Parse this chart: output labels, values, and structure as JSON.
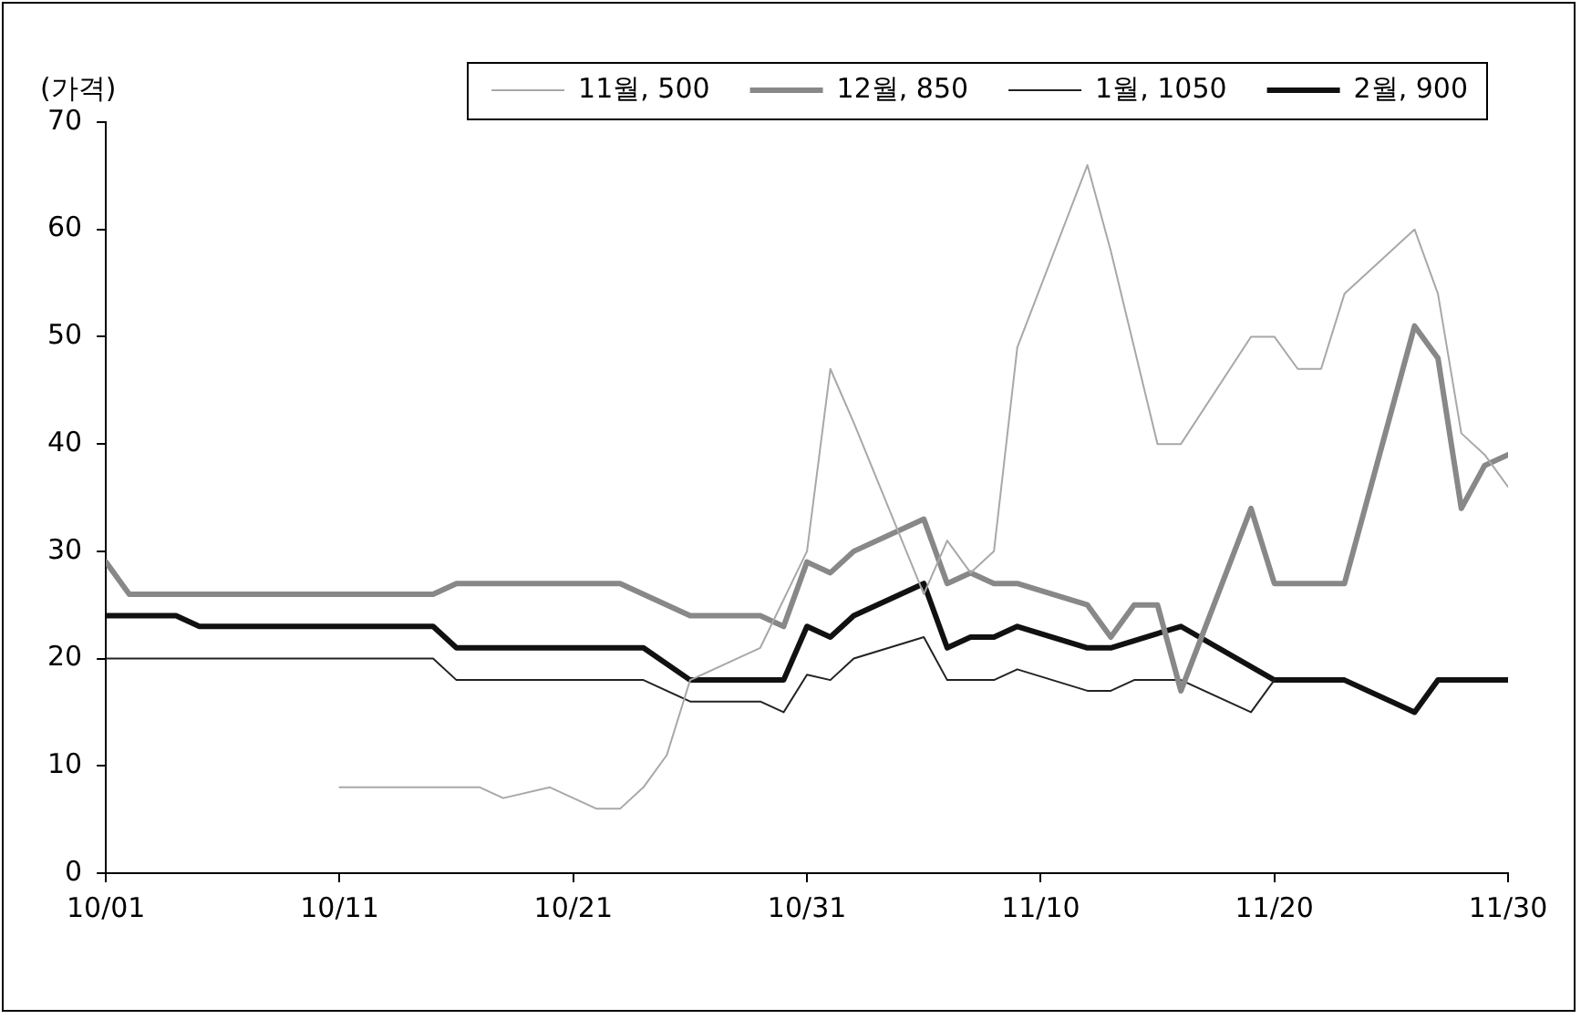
{
  "chart_data": {
    "type": "line",
    "ylabel": "(가격)",
    "xlim": [
      "--10-01",
      "--11-30"
    ],
    "xticks": [
      {
        "value": "--10-01",
        "label": "10/01"
      },
      {
        "value": "--10-11",
        "label": "10/11"
      },
      {
        "value": "--10-21",
        "label": "10/21"
      },
      {
        "value": "--10-31",
        "label": "10/31"
      },
      {
        "value": "--11-10",
        "label": "11/10"
      },
      {
        "value": "--11-20",
        "label": "11/20"
      },
      {
        "value": "--11-30",
        "label": "11/30"
      }
    ],
    "ylim": [
      0,
      70
    ],
    "yticks": [
      0,
      10,
      20,
      30,
      40,
      50,
      60,
      70
    ],
    "grid": false,
    "legend": "top right",
    "marker": "none",
    "series": [
      {
        "name": "11월, 500",
        "color": "#a8a8a8",
        "x": [
          "--10-11",
          "--10-17",
          "--10-18",
          "--10-20",
          "--10-22",
          "--10-23",
          "--10-24",
          "--10-25",
          "--10-26",
          "--10-29",
          "--10-31",
          "--11-01",
          "--11-02",
          "--11-05",
          "--11-06",
          "--11-07",
          "--11-08",
          "--11-09",
          "--11-12",
          "--11-13",
          "--11-15",
          "--11-16",
          "--11-19",
          "--11-20",
          "--11-21",
          "--11-22",
          "--11-23",
          "--11-24",
          "--11-26",
          "--11-27",
          "--11-28",
          "--11-29",
          "--11-30"
        ],
        "values": [
          8,
          8,
          7,
          8,
          6,
          6,
          8,
          11,
          18,
          21,
          30,
          47,
          42,
          26,
          31,
          28,
          30,
          49,
          66,
          58,
          40,
          40,
          50,
          50,
          47,
          47,
          54,
          56,
          60,
          54,
          41,
          39,
          36
        ]
      },
      {
        "name": "12월, 850",
        "color": "#888888",
        "x": [
          "--10-01",
          "--10-02",
          "--10-15",
          "--10-16",
          "--10-23",
          "--10-26",
          "--10-29",
          "--10-30",
          "--10-31",
          "--11-01",
          "--11-02",
          "--11-05",
          "--11-06",
          "--11-07",
          "--11-08",
          "--11-09",
          "--11-12",
          "--11-13",
          "--11-14",
          "--11-15",
          "--11-16",
          "--11-19",
          "--11-20",
          "--11-23",
          "--11-26",
          "--11-27",
          "--11-28",
          "--11-29",
          "--11-30"
        ],
        "values": [
          29,
          26,
          26,
          27,
          27,
          24,
          24,
          23,
          29,
          28,
          30,
          33,
          27,
          28,
          27,
          27,
          25,
          22,
          25,
          25,
          17,
          34,
          27,
          27,
          51,
          48,
          34,
          38,
          39
        ]
      },
      {
        "name": "1월, 1050",
        "color": "#222222",
        "x": [
          "--10-01",
          "--10-15",
          "--10-16",
          "--10-24",
          "--10-26",
          "--10-29",
          "--10-30",
          "--10-31",
          "--11-01",
          "--11-02",
          "--11-05",
          "--11-06",
          "--11-08",
          "--11-09",
          "--11-12",
          "--11-13",
          "--11-14",
          "--11-16",
          "--11-19",
          "--11-20"
        ],
        "values": [
          20,
          20,
          18,
          18,
          16,
          16,
          15,
          18.5,
          18,
          20,
          22,
          18,
          18,
          19,
          17,
          17,
          18,
          18,
          15,
          18
        ]
      },
      {
        "name": "2월, 900",
        "color": "#111111",
        "x": [
          "--10-01",
          "--10-04",
          "--10-05",
          "--10-15",
          "--10-16",
          "--10-24",
          "--10-26",
          "--10-30",
          "--10-31",
          "--11-01",
          "--11-02",
          "--11-05",
          "--11-06",
          "--11-07",
          "--11-08",
          "--11-09",
          "--11-12",
          "--11-13",
          "--11-16",
          "--11-20",
          "--11-23",
          "--11-26",
          "--11-27",
          "--11-30"
        ],
        "values": [
          24,
          24,
          23,
          23,
          21,
          21,
          18,
          18,
          23,
          22,
          24,
          27,
          21,
          22,
          22,
          23,
          21,
          21,
          23,
          18,
          18,
          15,
          18,
          18
        ]
      }
    ]
  }
}
